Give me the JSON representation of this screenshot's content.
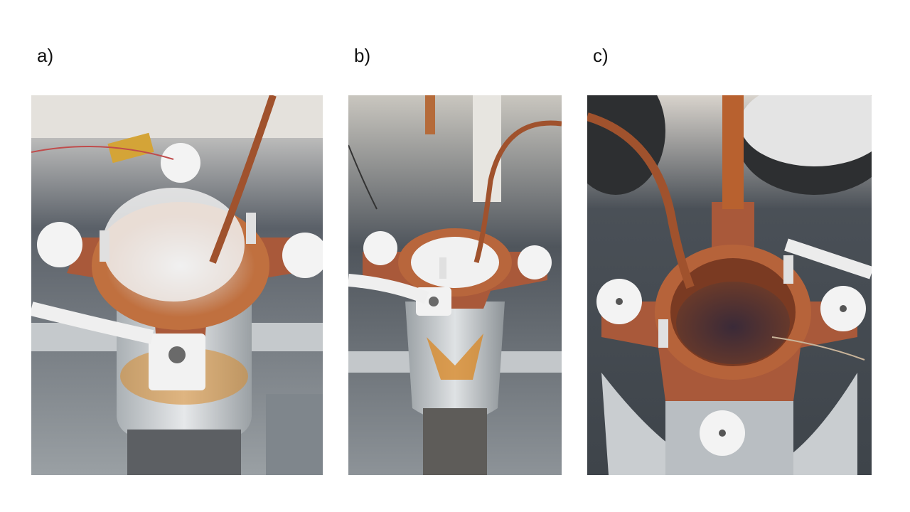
{
  "panels": [
    {
      "label": "a)"
    },
    {
      "label": "b)"
    },
    {
      "label": "c)"
    }
  ],
  "colors": {
    "background": "#ffffff",
    "copper": "#b5653a",
    "frost": "#f2f2f2",
    "kapton": "#d88a2a",
    "dark_grey": "#4a5057"
  }
}
